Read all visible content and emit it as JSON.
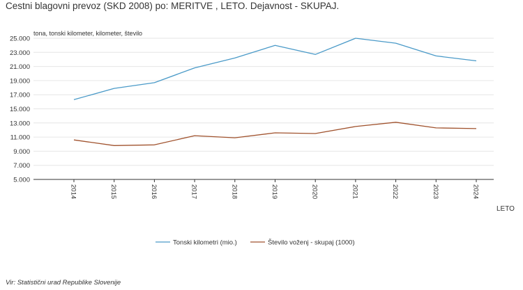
{
  "title": "Cestni blagovni prevoz (SKD 2008) po: MERITVE ,  LETO. Dejavnost - SKUPAJ.",
  "source": "Vir: Statistični urad Republike Slovenije",
  "colors": {
    "tonski": "#4a9ac8",
    "voznje": "#a0522d",
    "grid": "#e6e6e6",
    "axis": "#333333"
  },
  "chart_data": {
    "type": "line",
    "ylabel": "tona, tonski kilometer, kilometer, število",
    "xlabel": "LETO",
    "ylim": [
      5000,
      25000
    ],
    "yticks": [
      "25.000",
      "23.000",
      "21.000",
      "19.000",
      "17.000",
      "15.000",
      "13.000",
      "11.000",
      "9.000",
      "7.000",
      "5.000"
    ],
    "ytick_values": [
      25000,
      23000,
      21000,
      19000,
      17000,
      15000,
      13000,
      11000,
      9000,
      7000,
      5000
    ],
    "categories": [
      "2014",
      "2015",
      "2016",
      "2017",
      "2018",
      "2019",
      "2020",
      "2021",
      "2022",
      "2023",
      "2024"
    ],
    "grid": true,
    "legend_position": "bottom",
    "series": [
      {
        "name": "Tonski kilometri (mio.)",
        "color": "#4a9ac8",
        "values": [
          16300,
          17900,
          18700,
          20800,
          22200,
          24000,
          22700,
          25000,
          24300,
          22500,
          21800
        ]
      },
      {
        "name": "Število voženj - skupaj (1000)",
        "color": "#a0522d",
        "values": [
          10600,
          9800,
          9900,
          11200,
          10900,
          11600,
          11500,
          12500,
          13100,
          12300,
          12200
        ]
      }
    ]
  }
}
